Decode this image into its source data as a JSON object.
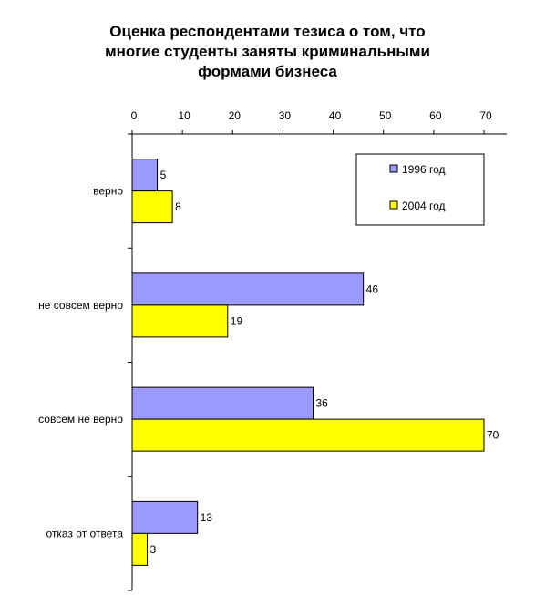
{
  "chart_data": {
    "type": "bar",
    "orientation": "horizontal",
    "title_lines": [
      "Оценка респондентами тезиса о том, что",
      "многие студенты заняты криминальными",
      "формами бизнеса"
    ],
    "categories": [
      "верно",
      "не совсем верно",
      "совсем не верно",
      "отказ от ответа"
    ],
    "series": [
      {
        "name": "1996 год",
        "values": [
          5,
          46,
          36,
          13
        ],
        "color": "#9999ff"
      },
      {
        "name": "2004 год",
        "values": [
          8,
          19,
          70,
          3
        ],
        "color": "#ffff00"
      }
    ],
    "xlim": [
      0,
      70
    ],
    "x_ticks": [
      "0",
      "10",
      "20",
      "30",
      "40",
      "50",
      "60",
      "70"
    ],
    "x_axis_position": "top",
    "legend_position": "top-right",
    "grid": false
  }
}
